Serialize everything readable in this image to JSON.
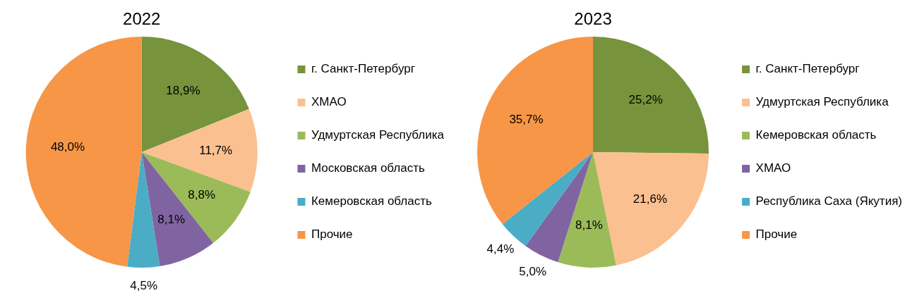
{
  "chart_data": [
    {
      "type": "pie",
      "title": "2022",
      "categories": [
        "г. Санкт-Петербург",
        "ХМАО",
        "Удмуртская Республика",
        "Московская область",
        "Кемеровская область",
        "Прочие"
      ],
      "values": [
        18.9,
        11.7,
        8.8,
        8.1,
        4.5,
        48.0
      ],
      "colors": [
        "#77933c",
        "#fac090",
        "#9bbb59",
        "#8064a2",
        "#4bacc6",
        "#f79646"
      ],
      "value_labels": [
        "18,9%",
        "11,7%",
        "8,8%",
        "8,1%",
        "4,5%",
        "48,0%"
      ],
      "legend": "right"
    },
    {
      "type": "pie",
      "title": "2023",
      "categories": [
        "г. Санкт-Петербург",
        "Удмуртская Республика",
        "Кемеровская область",
        "ХМАО",
        "Республика Саха (Якутия)",
        "Прочие"
      ],
      "values": [
        25.2,
        21.6,
        8.1,
        5.0,
        4.4,
        35.7
      ],
      "colors": [
        "#77933c",
        "#fac090",
        "#9bbb59",
        "#8064a2",
        "#4bacc6",
        "#f79646"
      ],
      "value_labels": [
        "25,2%",
        "21,6%",
        "8,1%",
        "5,0%",
        "4,4%",
        "35,7%"
      ],
      "legend": "right"
    }
  ]
}
